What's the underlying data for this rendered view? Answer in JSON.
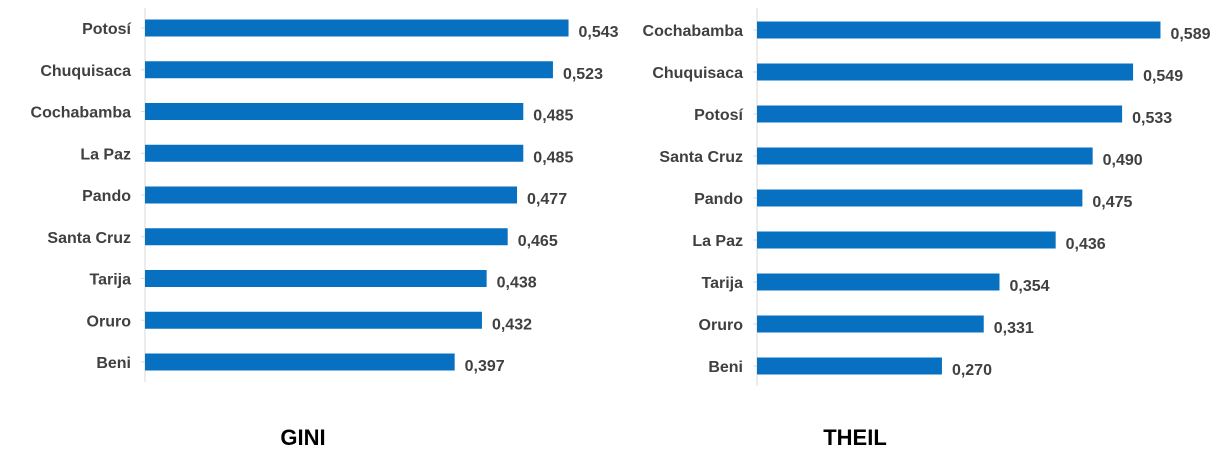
{
  "colors": {
    "bar": "#0870C0",
    "text": "#404040",
    "title": "#000000",
    "axis": "#d9d9d9"
  },
  "chart_data": [
    {
      "type": "bar",
      "orientation": "horizontal",
      "title": "GINI",
      "categories": [
        "Potosí",
        "Chuquisaca",
        "Cochabamba",
        "La Paz",
        "Pando",
        "Santa Cruz",
        "Tarija",
        "Oruro",
        "Beni"
      ],
      "values": [
        0.543,
        0.523,
        0.485,
        0.485,
        0.477,
        0.465,
        0.438,
        0.432,
        0.397
      ],
      "value_labels": [
        "0,543",
        "0,523",
        "0,485",
        "0,485",
        "0,477",
        "0,465",
        "0,438",
        "0,432",
        "0,397"
      ],
      "xlim": [
        0,
        0.55
      ],
      "grid": false,
      "legend": "none"
    },
    {
      "type": "bar",
      "orientation": "horizontal",
      "title": "THEIL",
      "categories": [
        "Cochabamba",
        "Chuquisaca",
        "Potosí",
        "Santa Cruz",
        "Pando",
        "La Paz",
        "Tarija",
        "Oruro",
        "Beni"
      ],
      "values": [
        0.589,
        0.549,
        0.533,
        0.49,
        0.475,
        0.436,
        0.354,
        0.331,
        0.27
      ],
      "value_labels": [
        "0,589",
        "0,549",
        "0,533",
        "0,490",
        "0,475",
        "0,436",
        "0,354",
        "0,331",
        "0,270"
      ],
      "xlim": [
        0,
        0.6
      ],
      "grid": false,
      "legend": "none"
    }
  ]
}
